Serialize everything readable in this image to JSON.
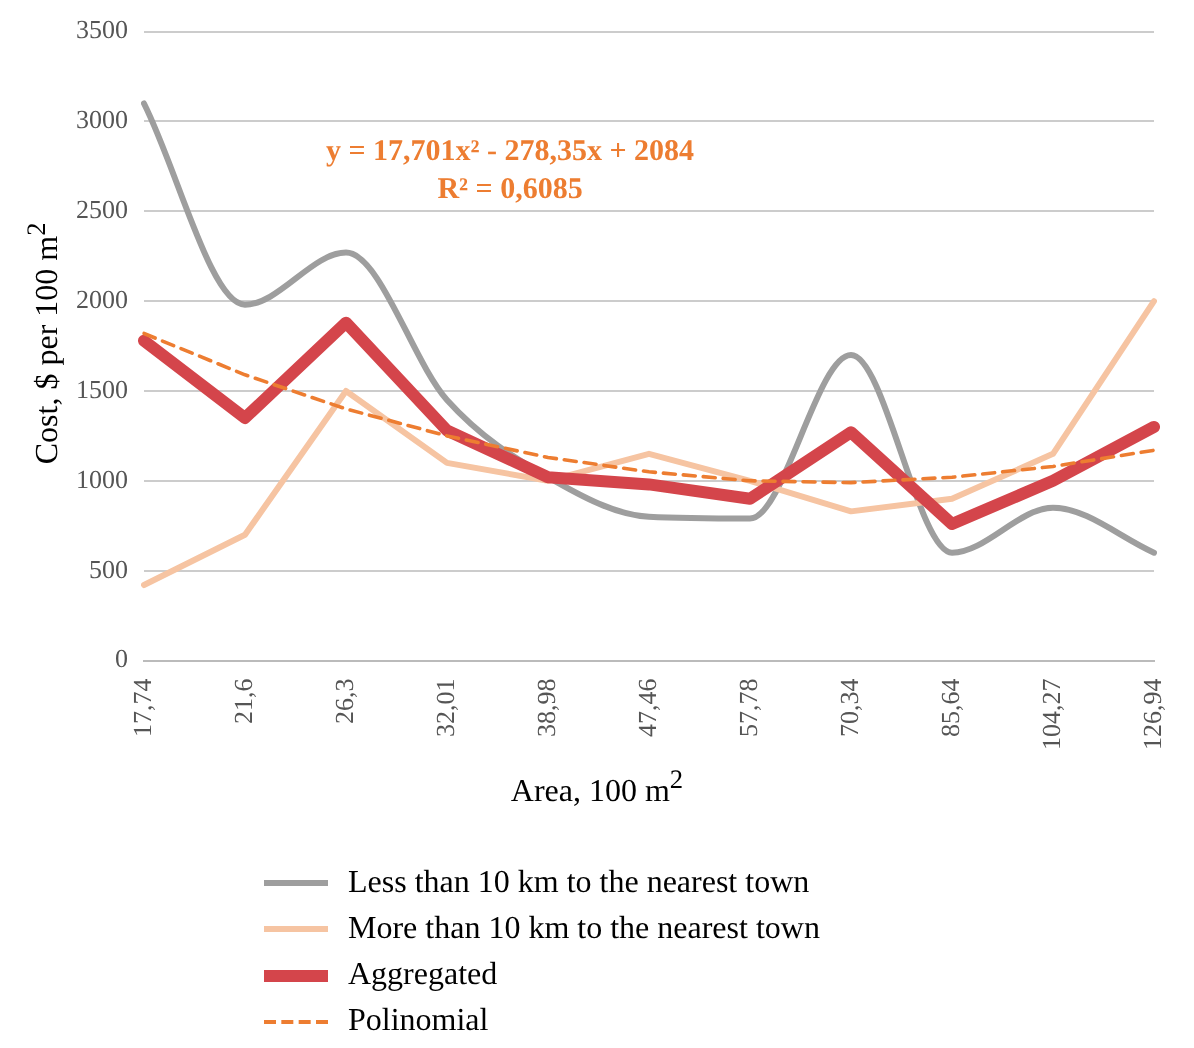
{
  "chart_data": {
    "type": "line",
    "xlabel": "Area, 100 m$^{2}$",
    "ylabel": "Cost, $ per 100 m$^{2}$",
    "categories": [
      "17,74",
      "21,6",
      "26,3",
      "32,01",
      "38,98",
      "47,46",
      "57,78",
      "70,34",
      "85,64",
      "104,27",
      "126,94"
    ],
    "series": [
      {
        "name": "Less than 10 km to the nearest town",
        "color": "#9e9e9e",
        "values": [
          3100,
          1980,
          2270,
          1450,
          1020,
          800,
          790,
          1700,
          600,
          850,
          600
        ]
      },
      {
        "name": "More than 10 km to the nearest town",
        "color": "#f6c4a2",
        "values": [
          420,
          700,
          1500,
          1100,
          1000,
          1150,
          1000,
          830,
          900,
          1150,
          2000
        ]
      },
      {
        "name": "Aggregated",
        "color": "#d4454b",
        "values": [
          1780,
          1350,
          1880,
          1280,
          1020,
          980,
          900,
          1270,
          760,
          1000,
          1300
        ]
      },
      {
        "name": "Polinomial",
        "color": "#ed7d31",
        "line_style": "dashed",
        "values": [
          1820,
          1590,
          1400,
          1250,
          1130,
          1050,
          1000,
          990,
          1020,
          1080,
          1170
        ]
      }
    ],
    "annotations": [
      "y = 17,701x² - 278,35x + 2084",
      "R² = 0,6085"
    ],
    "ylim": [
      0,
      3500
    ],
    "yticks": [
      0,
      500,
      1000,
      1500,
      2000,
      2500,
      3000,
      3500
    ],
    "grid": "y",
    "legend": "bottom",
    "marker": "none"
  }
}
